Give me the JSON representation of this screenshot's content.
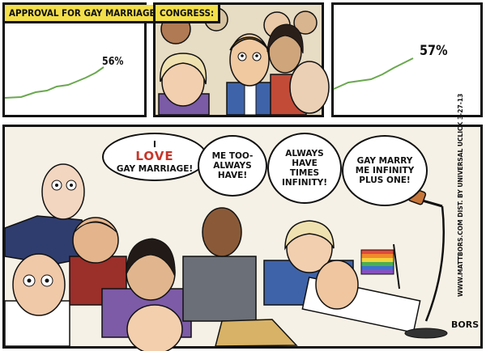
{
  "panel1": {
    "caption": "APPROVAL FOR GAY MARRIAGE",
    "percent": "56%"
  },
  "panel2": {
    "caption": "CONGRESS:"
  },
  "panel3": {
    "percent": "57%"
  },
  "panel4": {
    "bubble1": {
      "line1_pre": "I",
      "line1_em": "LOVE",
      "line2": "GAY MARRIAGE!"
    },
    "bubble2": {
      "lines": [
        "ME TOO-",
        "ALWAYS",
        "HAVE!"
      ]
    },
    "bubble3": {
      "lines": [
        "ALWAYS",
        "HAVE",
        "TIMES",
        "INFINITY!"
      ]
    },
    "bubble4": {
      "lines": [
        "GAY MARRY",
        "ME INFINITY",
        "PLUS ONE!"
      ]
    },
    "credit": "WWW.MATTBORS.COM   DIST. BY UNIVERSAL UCLICK   3-27-13",
    "signature": "BORS"
  },
  "colors": {
    "caption_bg": "#f3df4a",
    "trend_line": "#6aa84f",
    "love_text": "#c8362a",
    "flag_stripes": [
      "#e24a3b",
      "#f08a2b",
      "#f3d33b",
      "#4caf50",
      "#3f6fd1",
      "#8a4fc1"
    ]
  },
  "icons": {
    "rainbow_flag": "rainbow-flag-icon",
    "microphone": "microphone-icon"
  }
}
